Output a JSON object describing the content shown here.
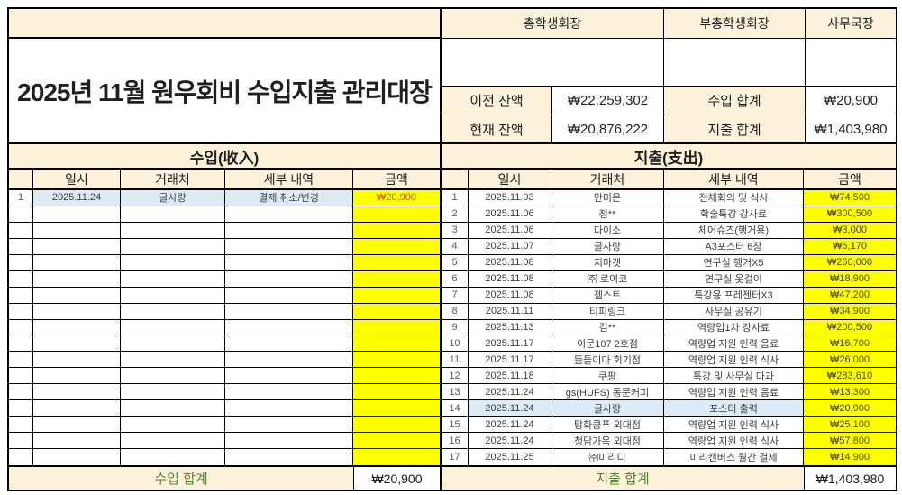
{
  "title": "2025년 11월 원우회비 수입지출 관리대장",
  "approval": {
    "headers": [
      "총학생회장",
      "부총학생회장",
      "사무국장"
    ]
  },
  "summary": {
    "prev_balance_label": "이전 잔액",
    "prev_balance": "₩22,259,302",
    "income_total_label": "수입 합계",
    "income_total": "₩20,900",
    "curr_balance_label": "현재 잔액",
    "curr_balance": "₩20,876,222",
    "expense_total_label": "지출 합계",
    "expense_total": "₩1,403,980"
  },
  "income": {
    "section_title": "수입(收入)",
    "columns": [
      "일시",
      "거래처",
      "세부 내역",
      "금액"
    ],
    "rows": [
      {
        "no": "1",
        "date": "2025.11.24",
        "vendor": "글사랑",
        "detail": "결제 취소/변경",
        "amount": "₩20,900",
        "highlight": true
      }
    ],
    "empty_row_count": 16,
    "footer_label": "수입 합계",
    "footer_total": "₩20,900"
  },
  "expense": {
    "section_title": "지출(支出)",
    "columns": [
      "일시",
      "거래처",
      "세부 내역",
      "금액"
    ],
    "rows": [
      {
        "no": "1",
        "date": "2025.11.03",
        "vendor": "만미은",
        "detail": "전체회의 및 식사",
        "amount": "₩74,500"
      },
      {
        "no": "2",
        "date": "2025.11.06",
        "vendor": "정**",
        "detail": "학술특강 강사료",
        "amount": "₩300,500"
      },
      {
        "no": "3",
        "date": "2025.11.06",
        "vendor": "다이소",
        "detail": "체어슈즈(행거용)",
        "amount": "₩3,000"
      },
      {
        "no": "4",
        "date": "2025.11.07",
        "vendor": "글사랑",
        "detail": "A3포스터 6장",
        "amount": "₩6,170"
      },
      {
        "no": "5",
        "date": "2025.11.08",
        "vendor": "지마켓",
        "detail": "연구실 행거X5",
        "amount": "₩260,000"
      },
      {
        "no": "6",
        "date": "2025.11.08",
        "vendor": "㈜ 로이코",
        "detail": "연구실 옷걸이",
        "amount": "₩18,900"
      },
      {
        "no": "7",
        "date": "2025.11.08",
        "vendor": "젬스트",
        "detail": "특강용 프레젠터X3",
        "amount": "₩47,200"
      },
      {
        "no": "8",
        "date": "2025.11.11",
        "vendor": "티피링크",
        "detail": "사무실 공유기",
        "amount": "₩34,900"
      },
      {
        "no": "9",
        "date": "2025.11.13",
        "vendor": "김**",
        "detail": "역량업1차 강사료",
        "amount": "₩200,500"
      },
      {
        "no": "10",
        "date": "2025.11.17",
        "vendor": "이문107 2호점",
        "detail": "역량업 지원 인력 음료",
        "amount": "₩16,700"
      },
      {
        "no": "11",
        "date": "2025.11.17",
        "vendor": "뜸들이다 회기점",
        "detail": "역량업 지원 인력 식사",
        "amount": "₩26,000"
      },
      {
        "no": "12",
        "date": "2025.11.18",
        "vendor": "쿠팡",
        "detail": "특강 및 사무실 다과",
        "amount": "₩283,610"
      },
      {
        "no": "13",
        "date": "2025.11.24",
        "vendor": "gs(HUFS) 동문커피",
        "detail": "역량업 지원 인력 음료",
        "amount": "₩13,300"
      },
      {
        "no": "14",
        "date": "2025.11.24",
        "vendor": "글사랑",
        "detail": "포스터 출력",
        "amount": "₩20,900",
        "highlight": true
      },
      {
        "no": "15",
        "date": "2025.11.24",
        "vendor": "탕화쿵푸 외대점",
        "detail": "역량업 지원 인력 식사",
        "amount": "₩25,100"
      },
      {
        "no": "16",
        "date": "2025.11.24",
        "vendor": "청담가옥 외대점",
        "detail": "역량업 지원 인력 식사",
        "amount": "₩57,800"
      },
      {
        "no": "17",
        "date": "2025.11.25",
        "vendor": "㈜미리디",
        "detail": "미리캔버스 월간 결제",
        "amount": "₩14,900"
      }
    ],
    "empty_row_count": 0,
    "footer_label": "지출 합계",
    "footer_total": "₩1,403,980"
  },
  "colors": {
    "header_fill": "#FCF1DA",
    "amount_fill": "#FFFF00",
    "highlight_fill": "#DDEBF7",
    "total_label_text": "#538135",
    "income_amount_text": "#C05A11"
  }
}
